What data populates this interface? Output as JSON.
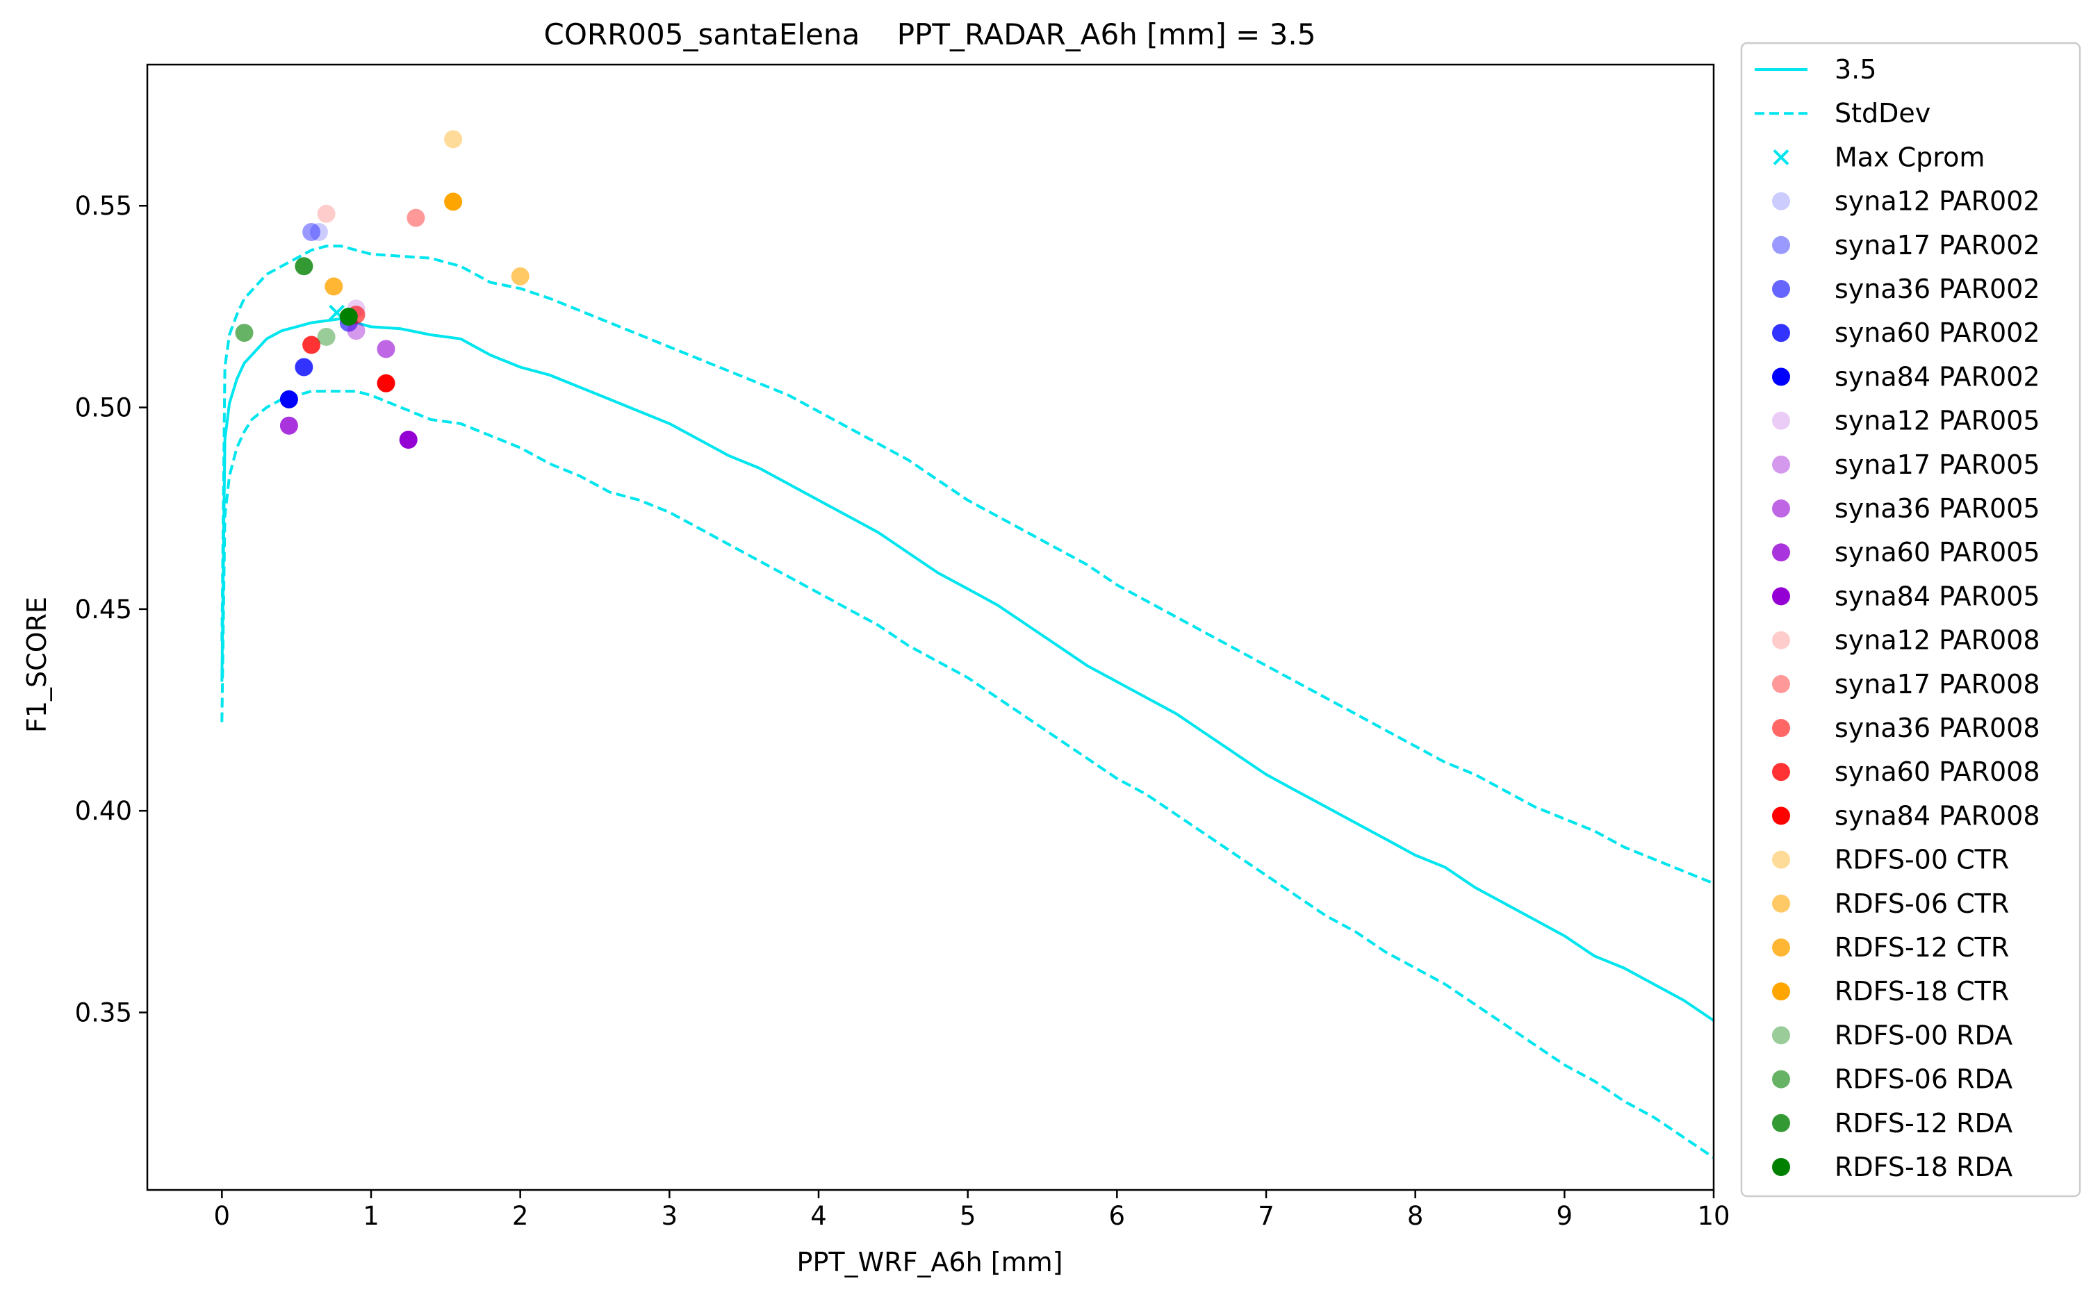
{
  "chart_data": {
    "type": "line",
    "title": "CORR005_santaElena    PPT_RADAR_A6h [mm] = 3.5",
    "xlabel": "PPT_WRF_A6h [mm]",
    "ylabel": "F1_SCORE",
    "xlim": [
      -0.5,
      10
    ],
    "ylim": [
      0.306,
      0.585
    ],
    "xticks": [
      0,
      1,
      2,
      3,
      4,
      5,
      6,
      7,
      8,
      9,
      10
    ],
    "yticks": [
      0.35,
      0.4,
      0.45,
      0.5,
      0.55
    ],
    "ytick_labels": [
      "0.35",
      "0.40",
      "0.45",
      "0.50",
      "0.55"
    ],
    "grid": false,
    "legend_position": "outside-right",
    "line_color": "#00E5EE",
    "series": [
      {
        "name": "3.5",
        "style": "solid",
        "x": [
          0.0,
          0.02,
          0.05,
          0.1,
          0.15,
          0.2,
          0.3,
          0.4,
          0.5,
          0.6,
          0.7,
          0.8,
          0.9,
          1.0,
          1.2,
          1.4,
          1.6,
          1.8,
          2.0,
          2.2,
          2.4,
          2.6,
          2.8,
          3.0,
          3.2,
          3.4,
          3.6,
          3.8,
          4.0,
          4.2,
          4.4,
          4.6,
          4.8,
          5.0,
          5.2,
          5.4,
          5.6,
          5.8,
          6.0,
          6.2,
          6.4,
          6.6,
          6.8,
          7.0,
          7.2,
          7.4,
          7.6,
          7.8,
          8.0,
          8.2,
          8.4,
          8.6,
          8.8,
          9.0,
          9.2,
          9.4,
          9.6,
          9.8,
          10.0
        ],
        "y": [
          0.432,
          0.492,
          0.501,
          0.507,
          0.511,
          0.513,
          0.517,
          0.519,
          0.52,
          0.521,
          0.5215,
          0.522,
          0.521,
          0.52,
          0.5195,
          0.518,
          0.517,
          0.513,
          0.51,
          0.508,
          0.505,
          0.502,
          0.499,
          0.496,
          0.492,
          0.488,
          0.485,
          0.481,
          0.477,
          0.473,
          0.469,
          0.464,
          0.459,
          0.455,
          0.451,
          0.446,
          0.441,
          0.436,
          0.432,
          0.428,
          0.424,
          0.419,
          0.414,
          0.409,
          0.405,
          0.401,
          0.397,
          0.393,
          0.389,
          0.386,
          0.381,
          0.377,
          0.373,
          0.369,
          0.364,
          0.361,
          0.357,
          0.353,
          0.348
        ]
      },
      {
        "name": "StdDev",
        "style": "dashed",
        "x": [
          0.0,
          0.02,
          0.05,
          0.1,
          0.15,
          0.2,
          0.3,
          0.4,
          0.5,
          0.6,
          0.7,
          0.8,
          0.9,
          1.0,
          1.2,
          1.4,
          1.6,
          1.8,
          2.0,
          2.2,
          2.4,
          2.6,
          2.8,
          3.0,
          3.2,
          3.4,
          3.6,
          3.8,
          4.0,
          4.2,
          4.4,
          4.6,
          4.8,
          5.0,
          5.2,
          5.4,
          5.6,
          5.8,
          6.0,
          6.2,
          6.4,
          6.6,
          6.8,
          7.0,
          7.2,
          7.4,
          7.6,
          7.8,
          8.0,
          8.2,
          8.4,
          8.6,
          8.8,
          9.0,
          9.2,
          9.4,
          9.6,
          9.8,
          10.0
        ],
        "y": [
          0.442,
          0.51,
          0.518,
          0.523,
          0.527,
          0.529,
          0.533,
          0.535,
          0.537,
          0.539,
          0.54,
          0.54,
          0.539,
          0.538,
          0.5375,
          0.537,
          0.535,
          0.531,
          0.5295,
          0.527,
          0.524,
          0.521,
          0.518,
          0.515,
          0.512,
          0.509,
          0.506,
          0.503,
          0.499,
          0.495,
          0.491,
          0.487,
          0.482,
          0.477,
          0.473,
          0.469,
          0.465,
          0.461,
          0.456,
          0.452,
          0.448,
          0.444,
          0.44,
          0.436,
          0.432,
          0.428,
          0.424,
          0.42,
          0.416,
          0.412,
          0.409,
          0.405,
          0.401,
          0.398,
          0.395,
          0.391,
          0.388,
          0.385,
          0.382
        ]
      },
      {
        "name": "",
        "style": "dashed",
        "x": [
          0.0,
          0.02,
          0.05,
          0.1,
          0.15,
          0.2,
          0.3,
          0.4,
          0.5,
          0.6,
          0.7,
          0.8,
          0.9,
          1.0,
          1.2,
          1.4,
          1.6,
          1.8,
          2.0,
          2.2,
          2.4,
          2.6,
          2.8,
          3.0,
          3.2,
          3.4,
          3.6,
          3.8,
          4.0,
          4.2,
          4.4,
          4.6,
          4.8,
          5.0,
          5.2,
          5.4,
          5.6,
          5.8,
          6.0,
          6.2,
          6.4,
          6.6,
          6.8,
          7.0,
          7.2,
          7.4,
          7.6,
          7.8,
          8.0,
          8.2,
          8.4,
          8.6,
          8.8,
          9.0,
          9.2,
          9.4,
          9.6,
          9.8,
          10.0
        ],
        "y": [
          0.422,
          0.473,
          0.483,
          0.49,
          0.494,
          0.497,
          0.5,
          0.502,
          0.503,
          0.504,
          0.504,
          0.504,
          0.504,
          0.503,
          0.5,
          0.497,
          0.496,
          0.493,
          0.49,
          0.486,
          0.483,
          0.479,
          0.477,
          0.474,
          0.47,
          0.466,
          0.462,
          0.458,
          0.454,
          0.45,
          0.446,
          0.441,
          0.437,
          0.433,
          0.428,
          0.423,
          0.418,
          0.413,
          0.408,
          0.404,
          0.399,
          0.394,
          0.389,
          0.384,
          0.379,
          0.374,
          0.37,
          0.365,
          0.361,
          0.357,
          0.352,
          0.347,
          0.342,
          0.337,
          0.333,
          0.328,
          0.324,
          0.319,
          0.314
        ]
      }
    ],
    "max_marker": {
      "name": "Max Cprom",
      "x": 0.77,
      "y": 0.5235,
      "color": "#00E5EE",
      "symbol": "x"
    },
    "scatter": [
      {
        "name": "syna12 PAR002",
        "x": 0.65,
        "y": 0.5435,
        "color": "#0000FF",
        "alpha": 0.2
      },
      {
        "name": "syna17 PAR002",
        "x": 0.6,
        "y": 0.5435,
        "color": "#0000FF",
        "alpha": 0.4
      },
      {
        "name": "syna36 PAR002",
        "x": 0.85,
        "y": 0.521,
        "color": "#0000FF",
        "alpha": 0.6
      },
      {
        "name": "syna60 PAR002",
        "x": 0.55,
        "y": 0.51,
        "color": "#0000FF",
        "alpha": 0.8
      },
      {
        "name": "syna84 PAR002",
        "x": 0.45,
        "y": 0.502,
        "color": "#0000FF",
        "alpha": 1.0
      },
      {
        "name": "syna12 PAR005",
        "x": 0.9,
        "y": 0.5245,
        "color": "#9400D3",
        "alpha": 0.2
      },
      {
        "name": "syna17 PAR005",
        "x": 0.9,
        "y": 0.519,
        "color": "#9400D3",
        "alpha": 0.4
      },
      {
        "name": "syna36 PAR005",
        "x": 1.1,
        "y": 0.5145,
        "color": "#9400D3",
        "alpha": 0.6
      },
      {
        "name": "syna60 PAR005",
        "x": 0.45,
        "y": 0.4955,
        "color": "#9400D3",
        "alpha": 0.8
      },
      {
        "name": "syna84 PAR005",
        "x": 1.25,
        "y": 0.492,
        "color": "#9400D3",
        "alpha": 1.0
      },
      {
        "name": "syna12 PAR008",
        "x": 0.7,
        "y": 0.548,
        "color": "#FF0000",
        "alpha": 0.2
      },
      {
        "name": "syna17 PAR008",
        "x": 1.3,
        "y": 0.547,
        "color": "#FF0000",
        "alpha": 0.4
      },
      {
        "name": "syna36 PAR008",
        "x": 0.9,
        "y": 0.523,
        "color": "#FF0000",
        "alpha": 0.6
      },
      {
        "name": "syna60 PAR008",
        "x": 0.6,
        "y": 0.5155,
        "color": "#FF0000",
        "alpha": 0.8
      },
      {
        "name": "syna84 PAR008",
        "x": 1.1,
        "y": 0.506,
        "color": "#FF0000",
        "alpha": 1.0
      },
      {
        "name": " RDFS-00 CTR",
        "x": 1.55,
        "y": 0.5665,
        "color": "#FFA500",
        "alpha": 0.4
      },
      {
        "name": " RDFS-06 CTR",
        "x": 2.0,
        "y": 0.5325,
        "color": "#FFA500",
        "alpha": 0.6
      },
      {
        "name": " RDFS-12 CTR",
        "x": 0.75,
        "y": 0.53,
        "color": "#FFA500",
        "alpha": 0.8
      },
      {
        "name": " RDFS-18 CTR",
        "x": 1.55,
        "y": 0.551,
        "color": "#FFA500",
        "alpha": 1.0
      },
      {
        "name": " RDFS-00 RDA",
        "x": 0.7,
        "y": 0.5175,
        "color": "#008000",
        "alpha": 0.4
      },
      {
        "name": " RDFS-06 RDA",
        "x": 0.15,
        "y": 0.5185,
        "color": "#008000",
        "alpha": 0.6
      },
      {
        "name": " RDFS-12 RDA",
        "x": 0.55,
        "y": 0.535,
        "color": "#008000",
        "alpha": 0.8
      },
      {
        "name": " RDFS-18 RDA",
        "x": 0.85,
        "y": 0.5225,
        "color": "#008000",
        "alpha": 1.0
      }
    ]
  }
}
